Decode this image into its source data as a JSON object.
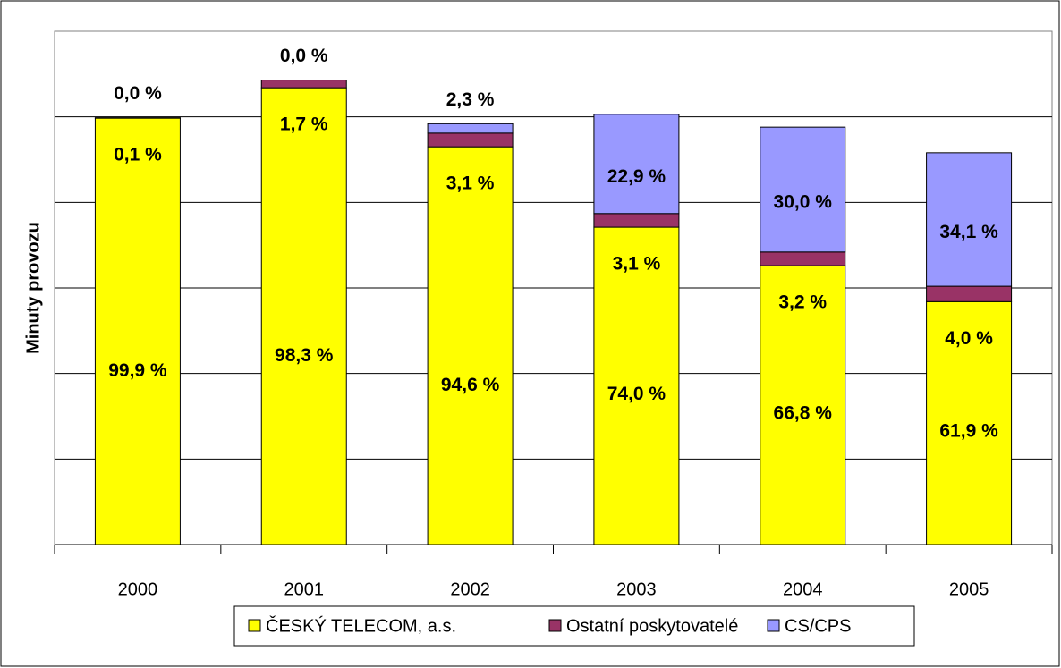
{
  "chart_data": {
    "type": "stacked_bar",
    "y_label": "Minuty provozu",
    "categories": [
      "2000",
      "2001",
      "2002",
      "2003",
      "2004",
      "2005"
    ],
    "series": [
      {
        "name": "ČESKÝ TELECOM, a.s.",
        "color": "#ffff00",
        "values": [
          4.985,
          5.34,
          4.65,
          3.71,
          3.26,
          2.84
        ],
        "value_labels": [
          "99,9 %",
          "98,3 %",
          "94,6 %",
          "74,0 %",
          "66,8 %",
          "61,9 %"
        ]
      },
      {
        "name": "Ostatní poskytovatelé",
        "color": "#993366",
        "values": [
          0.005,
          0.09,
          0.16,
          0.16,
          0.16,
          0.18
        ],
        "value_labels": [
          "0,1 %",
          "1,7 %",
          "3,1 %",
          "3,1 %",
          "3,2 %",
          "4,0 %"
        ]
      },
      {
        "name": "CS/CPS",
        "color": "#9999ff",
        "values": [
          0,
          0,
          0.11,
          1.16,
          1.46,
          1.56
        ],
        "value_labels": [
          "0,0 %",
          "0,0 %",
          "2,3 %",
          "22,9 %",
          "30,0 %",
          "34,1 %"
        ]
      }
    ],
    "annotation": ";",
    "ylim": [
      0,
      6
    ],
    "yticks": [
      0,
      1,
      2,
      3,
      4,
      5
    ],
    "grid": true,
    "legend": "bottom"
  }
}
